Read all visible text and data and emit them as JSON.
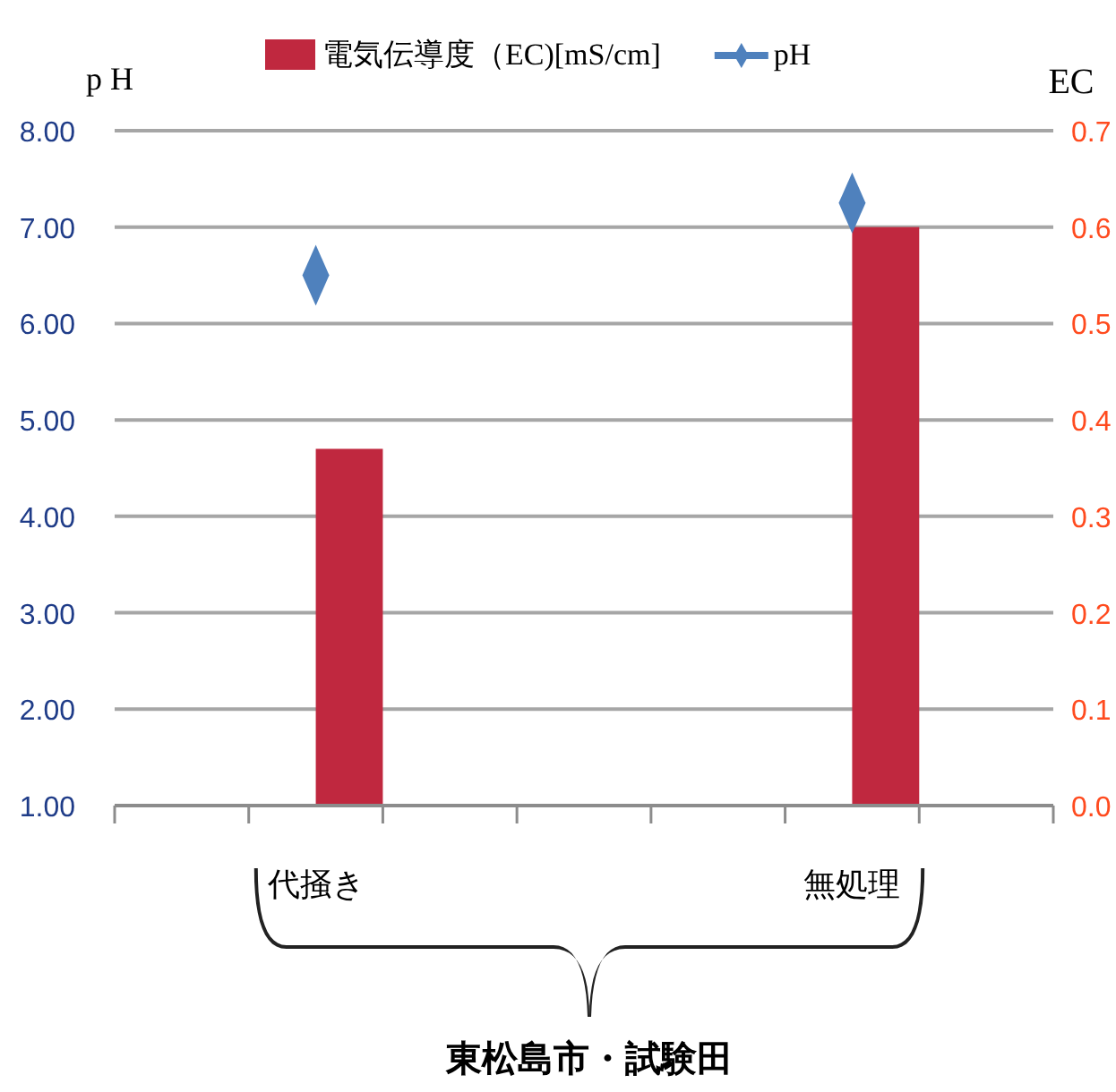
{
  "chart_data": {
    "type": "bar",
    "xlabel": "東松島市・試験田",
    "ylabel": "p H",
    "y2label": "EC",
    "categories": [
      null,
      "代掻き",
      null,
      null,
      null,
      "無処理",
      null
    ],
    "series": [
      {
        "name": "電気伝導度（EC)[mS/cm]",
        "axis": "y2",
        "color": "#c0283f",
        "values": [
          null,
          0.37,
          null,
          null,
          null,
          0.6,
          null
        ]
      },
      {
        "name": "pH",
        "type": "scatter",
        "axis": "y",
        "color": "#4f81bd",
        "marker": "diamond",
        "values": [
          null,
          6.5,
          null,
          null,
          null,
          7.25,
          null
        ]
      }
    ],
    "ylim": [
      1,
      8
    ],
    "yticks": [
      {
        "value": 1,
        "label": "1.00"
      },
      {
        "value": 2,
        "label": "2.00"
      },
      {
        "value": 3,
        "label": "3.00"
      },
      {
        "value": 4,
        "label": "4.00"
      },
      {
        "value": 5,
        "label": "5.00"
      },
      {
        "value": 6,
        "label": "6.00"
      },
      {
        "value": 7,
        "label": "7.00"
      },
      {
        "value": 8,
        "label": "8.00"
      }
    ],
    "y2lim": [
      0,
      0.7
    ],
    "y2ticks": [
      {
        "value": 0,
        "label": "0.0"
      },
      0.1,
      0.2,
      0.3,
      0.4,
      0.5,
      0.6,
      0.7
    ],
    "grid": "y",
    "legend": "top"
  }
}
